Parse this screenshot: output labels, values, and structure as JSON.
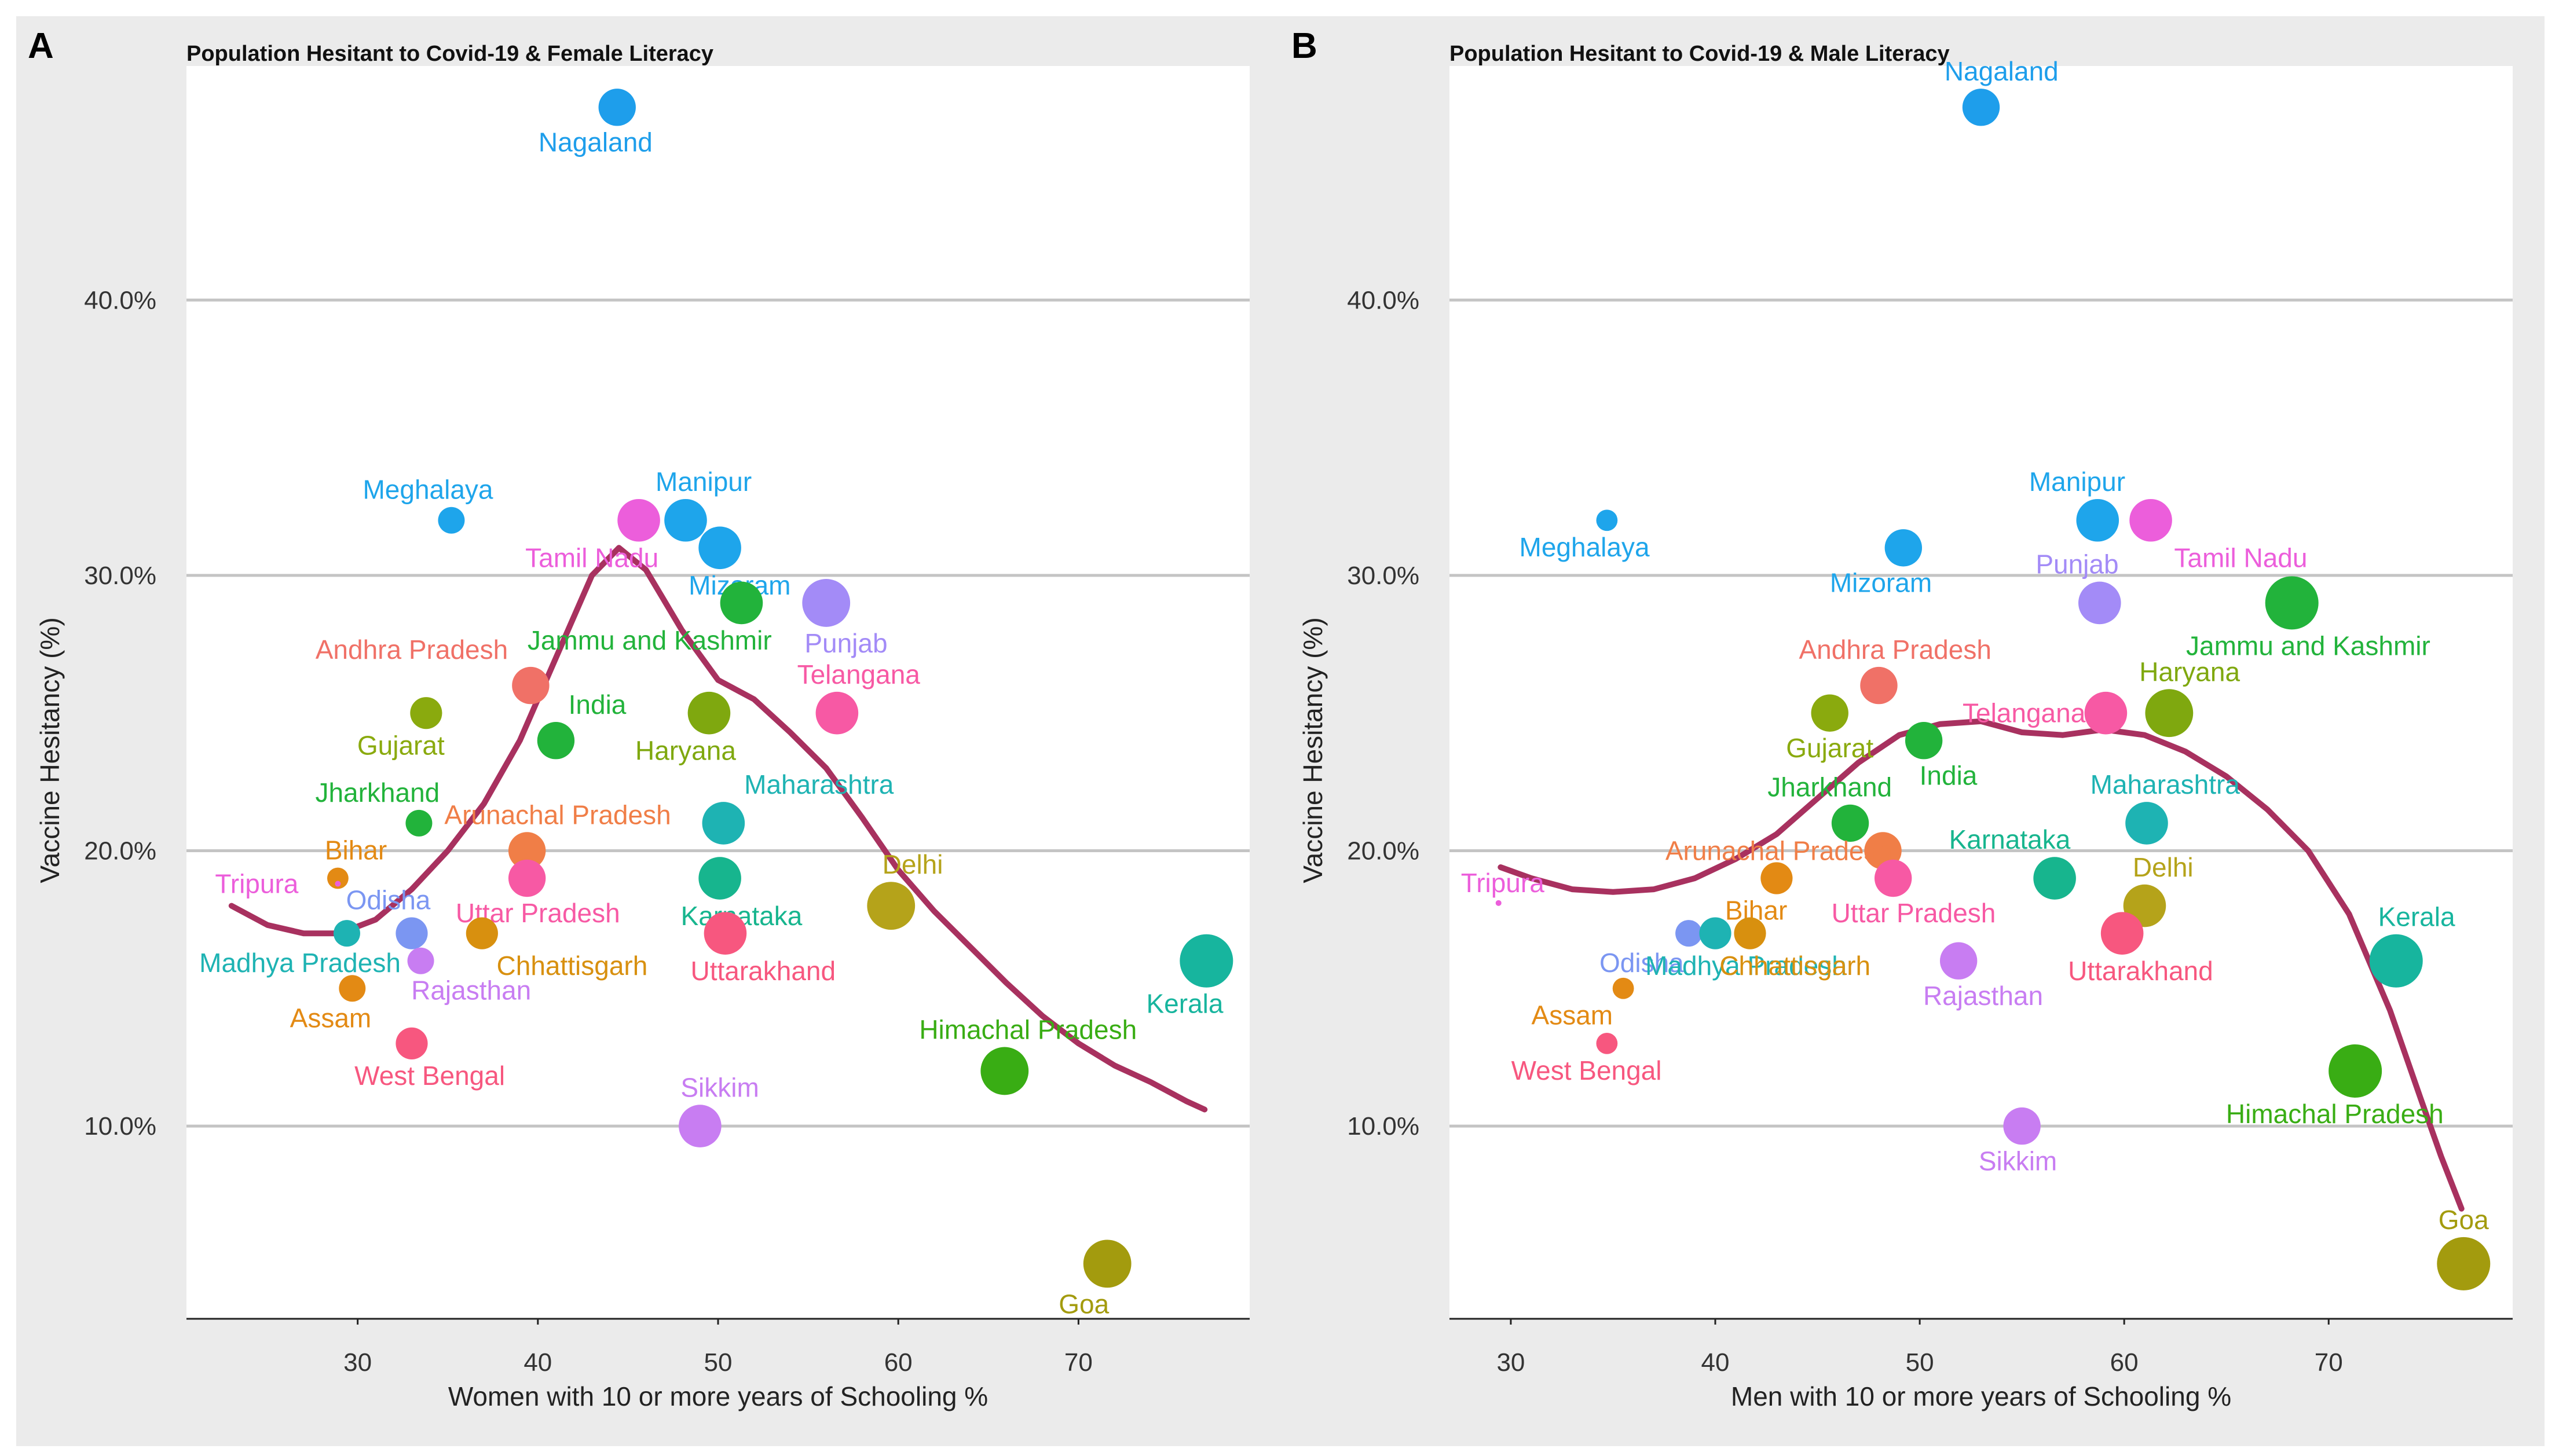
{
  "chart_data": [
    {
      "panel_letter": "A",
      "type": "scatter",
      "title": "Population Hesitant to Covid-19 & Female Literacy",
      "xlabel": "Women with 10 or more years of Schooling %",
      "ylabel": "Vaccine Hesitancy (%)",
      "xlim": [
        20.5,
        79.5
      ],
      "ylim": [
        3,
        48.5
      ],
      "x_ticks": [
        30,
        40,
        50,
        60,
        70
      ],
      "x_tick_labels": [
        "30",
        "40",
        "50",
        "60",
        "70"
      ],
      "y_ticks": [
        10,
        20,
        30,
        40
      ],
      "y_tick_labels": [
        "10.0%",
        "20.0%",
        "30.0%",
        "40.0%"
      ],
      "grid": "horizontal",
      "points": [
        {
          "label": "Nagaland",
          "x": 44.4,
          "y": 47,
          "size": 7,
          "color": "#1E9EEB",
          "label_pos": "below",
          "label_dx": -1.2
        },
        {
          "label": "Meghalaya",
          "x": 35.2,
          "y": 32,
          "size": 5,
          "color": "#1EA5EB",
          "label_pos": "above",
          "label_dx": -1.3
        },
        {
          "label": "Manipur",
          "x": 48.2,
          "y": 32,
          "size": 8,
          "color": "#1EA5EB",
          "label_pos": "above",
          "label_dx": 1.0
        },
        {
          "label": "Tamil Nadu",
          "x": 45.6,
          "y": 32,
          "size": 8,
          "color": "#EC5EDB",
          "label_pos": "below",
          "label_dx": -2.6
        },
        {
          "label": "Mizoram",
          "x": 50.1,
          "y": 31,
          "size": 8,
          "color": "#1EA5EB",
          "label_pos": "below",
          "label_dx": 1.1
        },
        {
          "label": "Jammu and Kashmir",
          "x": 51.3,
          "y": 29,
          "size": 8,
          "color": "#22B33B",
          "label_pos": "below",
          "label_dx": -5.1
        },
        {
          "label": "Punjab",
          "x": 56.0,
          "y": 29,
          "size": 9,
          "color": "#A38BF7",
          "label_pos": "below",
          "label_dx": 1.1
        },
        {
          "label": "Andhra Pradesh",
          "x": 39.6,
          "y": 26,
          "size": 7,
          "color": "#F07167",
          "label_pos": "above",
          "label_dx": -6.6
        },
        {
          "label": "Gujarat",
          "x": 33.8,
          "y": 25,
          "size": 6,
          "color": "#8AAA0E",
          "label_pos": "below",
          "label_dx": -1.4
        },
        {
          "label": "Haryana",
          "x": 49.5,
          "y": 25,
          "size": 8,
          "color": "#7FA80F",
          "label_pos": "below",
          "label_dx": -1.3
        },
        {
          "label": "Telangana",
          "x": 56.6,
          "y": 25,
          "size": 8,
          "color": "#F759A4",
          "label_pos": "above",
          "label_dx": 1.2
        },
        {
          "label": "India",
          "x": 41.0,
          "y": 24,
          "size": 7,
          "color": "#22B33B",
          "label_pos": "above",
          "label_dx": 2.3
        },
        {
          "label": "Jharkhand",
          "x": 33.4,
          "y": 21,
          "size": 5,
          "color": "#22B33B",
          "label_pos": "above",
          "label_dx": -2.3
        },
        {
          "label": "Maharashtra",
          "x": 50.3,
          "y": 21,
          "size": 8,
          "color": "#1EB3B3",
          "label_pos": "above",
          "label_dx": 5.3
        },
        {
          "label": "Arunachal Pradesh",
          "x": 39.4,
          "y": 20,
          "size": 7,
          "color": "#F07E47",
          "label_pos": "above",
          "label_dx": 1.7
        },
        {
          "label": "Bihar",
          "x": 28.9,
          "y": 19,
          "size": 4,
          "color": "#E38A14",
          "label_pos": "above",
          "label_dx": 1.0
        },
        {
          "label": "Karnataka",
          "x": 50.1,
          "y": 19,
          "size": 8,
          "color": "#17B58E",
          "label_pos": "below",
          "label_dx": 1.2
        },
        {
          "label": "Tripura",
          "x": 28.9,
          "y": 18.8,
          "size": 0,
          "color": "#EC5EDB",
          "label_pos": "left",
          "label_dx": -4.5
        },
        {
          "label": "Uttar Pradesh",
          "x": 39.4,
          "y": 19,
          "size": 7,
          "color": "#F759A4",
          "label_pos": "below",
          "label_dx": 0.6
        },
        {
          "label": "Delhi",
          "x": 59.6,
          "y": 18,
          "size": 9,
          "color": "#B5A31A",
          "label_pos": "above",
          "label_dx": 1.2
        },
        {
          "label": "Odisha",
          "x": 33.0,
          "y": 17,
          "size": 6,
          "color": "#7B96F2",
          "label_pos": "above",
          "label_dx": -1.3
        },
        {
          "label": "Madhya Pradesh",
          "x": 29.4,
          "y": 17,
          "size": 5,
          "color": "#1EB3B3",
          "label_pos": "below",
          "label_dx": -2.6
        },
        {
          "label": "Chhattisgarh",
          "x": 36.9,
          "y": 17,
          "size": 6,
          "color": "#D8900F",
          "label_pos": "below",
          "label_dx": 5.0
        },
        {
          "label": "Uttarakhand",
          "x": 50.4,
          "y": 17,
          "size": 8,
          "color": "#F7577F",
          "label_pos": "below",
          "label_dx": 2.1
        },
        {
          "label": "Kerala",
          "x": 77.1,
          "y": 16,
          "size": 10,
          "color": "#17B59E",
          "label_pos": "below",
          "label_dx": -1.2
        },
        {
          "label": "Rajasthan",
          "x": 33.5,
          "y": 16,
          "size": 5,
          "color": "#C87DF2",
          "label_pos": "below",
          "label_dx": 2.8
        },
        {
          "label": "Assam",
          "x": 29.7,
          "y": 15,
          "size": 5,
          "color": "#E38A14",
          "label_pos": "below",
          "label_dx": -1.2
        },
        {
          "label": "West Bengal",
          "x": 33.0,
          "y": 13,
          "size": 6,
          "color": "#F7577F",
          "label_pos": "below",
          "label_dx": 1.0
        },
        {
          "label": "Himachal Pradesh",
          "x": 65.9,
          "y": 12,
          "size": 9,
          "color": "#39AD14",
          "label_pos": "above",
          "label_dx": 1.3
        },
        {
          "label": "Sikkim",
          "x": 49.0,
          "y": 10,
          "size": 8,
          "color": "#C87DF2",
          "label_pos": "above",
          "label_dx": 1.1
        },
        {
          "label": "Goa",
          "x": 71.6,
          "y": 5,
          "size": 9,
          "color": "#A39B0E",
          "label_pos": "below",
          "label_dx": -1.3
        }
      ],
      "trend_line": {
        "color": "#A8315F",
        "x": [
          23.0,
          25.0,
          27.0,
          29.0,
          31.0,
          33.0,
          35.0,
          37.0,
          39.0,
          41.0,
          43.0,
          44.5,
          46.0,
          48.0,
          50.0,
          52.0,
          54.0,
          56.0,
          58.0,
          60.0,
          62.0,
          64.0,
          66.0,
          68.0,
          70.0,
          72.0,
          74.0,
          76.0,
          77.0
        ],
        "y": [
          18.0,
          17.3,
          17.0,
          17.0,
          17.5,
          18.6,
          20.0,
          21.7,
          24.0,
          27.0,
          30.0,
          31.0,
          30.2,
          28.0,
          26.2,
          25.5,
          24.3,
          23.0,
          21.2,
          19.3,
          17.8,
          16.5,
          15.2,
          14.0,
          13.0,
          12.2,
          11.6,
          10.9,
          10.6
        ]
      }
    },
    {
      "panel_letter": "B",
      "type": "scatter",
      "title": "Population Hesitant to Covid-19 & Male Literacy",
      "xlabel": "Men with 10 or more years of Schooling %",
      "ylabel": "Vaccine Hesitancy (%)",
      "xlim": [
        27.0,
        79.0
      ],
      "ylim": [
        3,
        48.5
      ],
      "x_ticks": [
        30,
        40,
        50,
        60,
        70
      ],
      "x_tick_labels": [
        "30",
        "40",
        "50",
        "60",
        "70"
      ],
      "y_ticks": [
        10,
        20,
        30,
        40
      ],
      "y_tick_labels": [
        "10.0%",
        "20.0%",
        "30.0%",
        "40.0%"
      ],
      "grid": "horizontal",
      "points": [
        {
          "label": "Nagaland",
          "x": 53.0,
          "y": 47,
          "size": 7,
          "color": "#1E9EEB",
          "label_pos": "above",
          "label_dx": 1.0
        },
        {
          "label": "Meghalaya",
          "x": 34.7,
          "y": 32,
          "size": 4,
          "color": "#1EA5EB",
          "label_pos": "below",
          "label_dx": -1.1
        },
        {
          "label": "Manipur",
          "x": 58.7,
          "y": 32,
          "size": 8,
          "color": "#1EA5EB",
          "label_pos": "above",
          "label_dx": -1.0
        },
        {
          "label": "Tamil Nadu",
          "x": 61.3,
          "y": 32,
          "size": 8,
          "color": "#EC5EDB",
          "label_pos": "below",
          "label_dx": 4.4
        },
        {
          "label": "Mizoram",
          "x": 49.2,
          "y": 31,
          "size": 7,
          "color": "#1EA5EB",
          "label_pos": "below",
          "label_dx": -1.1
        },
        {
          "label": "Punjab",
          "x": 58.8,
          "y": 29,
          "size": 8,
          "color": "#A38BF7",
          "label_pos": "above",
          "label_dx": -1.1
        },
        {
          "label": "Jammu and Kashmir",
          "x": 68.2,
          "y": 29,
          "size": 10,
          "color": "#22B33B",
          "label_pos": "below",
          "label_dx": 0.8
        },
        {
          "label": "Andhra Pradesh",
          "x": 48.0,
          "y": 26,
          "size": 7,
          "color": "#F07167",
          "label_pos": "above",
          "label_dx": 0.8
        },
        {
          "label": "Gujarat",
          "x": 45.6,
          "y": 25,
          "size": 7,
          "color": "#8AAA0E",
          "label_pos": "below",
          "label_dx": 0.0
        },
        {
          "label": "Telangana",
          "x": 59.1,
          "y": 25,
          "size": 8,
          "color": "#F759A4",
          "label_pos": "left",
          "label_dx": -4.0
        },
        {
          "label": "Haryana",
          "x": 62.2,
          "y": 25,
          "size": 9,
          "color": "#7FA80F",
          "label_pos": "above",
          "label_dx": 1.0
        },
        {
          "label": "India",
          "x": 50.2,
          "y": 24,
          "size": 7,
          "color": "#22B33B",
          "label_pos": "below",
          "label_dx": 1.2
        },
        {
          "label": "Jharkhand",
          "x": 46.6,
          "y": 21,
          "size": 7,
          "color": "#22B33B",
          "label_pos": "above",
          "label_dx": -1.0
        },
        {
          "label": "Maharashtra",
          "x": 61.1,
          "y": 21,
          "size": 8,
          "color": "#1EB3B3",
          "label_pos": "above",
          "label_dx": 0.9
        },
        {
          "label": "Arunachal Pradesh",
          "x": 48.2,
          "y": 20,
          "size": 7,
          "color": "#F07E47",
          "label_pos": "left",
          "label_dx": -5.1
        },
        {
          "label": "Karnataka",
          "x": 56.6,
          "y": 19,
          "size": 8,
          "color": "#17B58E",
          "label_pos": "above",
          "label_dx": -2.2
        },
        {
          "label": "Bihar",
          "x": 43.0,
          "y": 19,
          "size": 6,
          "color": "#E38A14",
          "label_pos": "below",
          "label_dx": -1.0
        },
        {
          "label": "Uttar Pradesh",
          "x": 48.7,
          "y": 19,
          "size": 7,
          "color": "#F759A4",
          "label_pos": "below",
          "label_dx": 1.0
        },
        {
          "label": "Tripura",
          "x": 29.4,
          "y": 18.1,
          "size": 1,
          "color": "#EC5EDB",
          "label_pos": "above",
          "label_dx": 0.2
        },
        {
          "label": "Delhi",
          "x": 61.0,
          "y": 18,
          "size": 8,
          "color": "#B5A31A",
          "label_pos": "above",
          "label_dx": 0.9
        },
        {
          "label": "Odisha",
          "x": 38.7,
          "y": 17,
          "size": 5,
          "color": "#7B96F2",
          "label_pos": "below",
          "label_dx": -2.3
        },
        {
          "label": "Madhya Pradesh",
          "x": 40.0,
          "y": 17,
          "size": 6,
          "color": "#1EB3B3",
          "label_pos": "below",
          "label_dx": 1.5
        },
        {
          "label": "Chhattisgarh",
          "x": 41.7,
          "y": 17,
          "size": 6,
          "color": "#D8900F",
          "label_pos": "below",
          "label_dx": 2.2
        },
        {
          "label": "Uttarakhand",
          "x": 59.9,
          "y": 17,
          "size": 8,
          "color": "#F7577F",
          "label_pos": "below",
          "label_dx": 0.9
        },
        {
          "label": "Rajasthan",
          "x": 51.9,
          "y": 16,
          "size": 7,
          "color": "#C87DF2",
          "label_pos": "below",
          "label_dx": 1.2
        },
        {
          "label": "Kerala",
          "x": 73.3,
          "y": 16,
          "size": 10,
          "color": "#17B59E",
          "label_pos": "above",
          "label_dx": 1.0
        },
        {
          "label": "Assam",
          "x": 35.5,
          "y": 15,
          "size": 4,
          "color": "#E38A14",
          "label_pos": "below",
          "label_dx": -2.5
        },
        {
          "label": "West Bengal",
          "x": 34.7,
          "y": 13,
          "size": 4,
          "color": "#F7577F",
          "label_pos": "below",
          "label_dx": -1.0
        },
        {
          "label": "Himachal Pradesh",
          "x": 71.3,
          "y": 12,
          "size": 10,
          "color": "#39AD14",
          "label_pos": "below",
          "label_dx": -1.0
        },
        {
          "label": "Sikkim",
          "x": 55.0,
          "y": 10,
          "size": 7,
          "color": "#C87DF2",
          "label_pos": "below",
          "label_dx": -0.2
        },
        {
          "label": "Goa",
          "x": 76.6,
          "y": 5,
          "size": 10,
          "color": "#A39B0E",
          "label_pos": "above",
          "label_dx": 0.0
        }
      ],
      "trend_line": {
        "color": "#A8315F",
        "x": [
          29.5,
          31.0,
          33.0,
          35.0,
          37.0,
          39.0,
          41.0,
          43.0,
          45.0,
          47.0,
          49.0,
          51.0,
          53.0,
          55.0,
          57.0,
          59.0,
          61.0,
          63.0,
          65.0,
          67.0,
          69.0,
          71.0,
          73.0,
          74.5,
          75.5,
          76.5
        ],
        "y": [
          19.4,
          19.0,
          18.6,
          18.5,
          18.6,
          19.0,
          19.7,
          20.6,
          21.9,
          23.2,
          24.2,
          24.6,
          24.7,
          24.3,
          24.2,
          24.4,
          24.2,
          23.6,
          22.7,
          21.5,
          20.0,
          17.7,
          14.2,
          11.0,
          8.9,
          7.0
        ]
      }
    }
  ]
}
